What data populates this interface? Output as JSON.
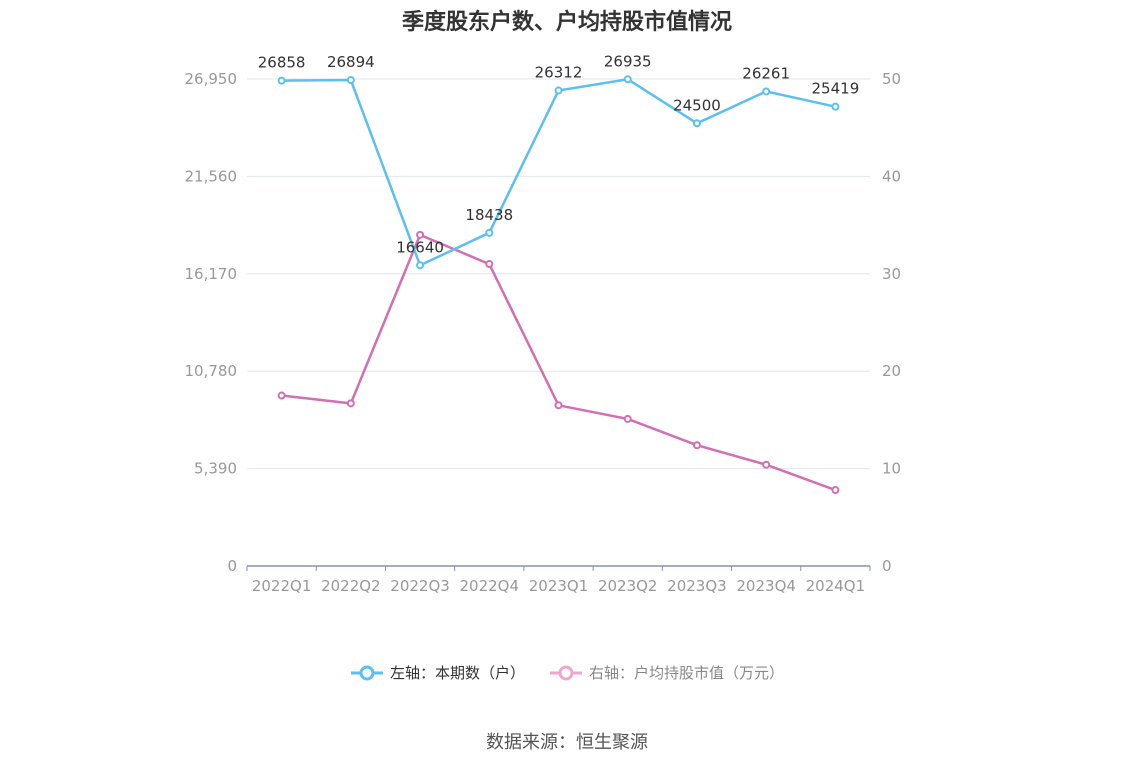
{
  "title": "季度股东户数、户均持股市值情况",
  "source": "数据来源：恒生聚源",
  "colors": {
    "left_series": "#5bc0ef",
    "right_series": "#d46eb3",
    "right_legend": "#f0a6cf",
    "grid": "#e3e6f0",
    "axis": "#8a8fb0",
    "tick_text": "#999999",
    "label_text": "#333333"
  },
  "chart_data": {
    "type": "line",
    "title": "季度股东户数、户均持股市值情况",
    "categories": [
      "2022Q1",
      "2022Q2",
      "2022Q3",
      "2022Q4",
      "2023Q1",
      "2023Q2",
      "2023Q3",
      "2023Q4",
      "2024Q1"
    ],
    "y_left": {
      "min": 0,
      "max": 26950,
      "ticks": [
        0,
        5390,
        10780,
        16170,
        21560,
        26950
      ],
      "tick_labels": [
        "0",
        "5,390",
        "10,780",
        "16,170",
        "21,560",
        "26,950"
      ]
    },
    "y_right": {
      "min": 0,
      "max": 50,
      "ticks": [
        0,
        10,
        20,
        30,
        40,
        50
      ],
      "tick_labels": [
        "0",
        "10",
        "20",
        "30",
        "40",
        "50"
      ]
    },
    "grid": true,
    "legend_position": "bottom",
    "series": [
      {
        "name": "左轴：本期数（户）",
        "axis": "left",
        "values": [
          26858,
          26894,
          16640,
          18438,
          26312,
          26935,
          24500,
          26261,
          25419
        ],
        "data_labels": [
          "26858",
          "26894",
          "16640",
          "18438",
          "26312",
          "26935",
          "24500",
          "26261",
          "25419"
        ]
      },
      {
        "name": "右轴：户均持股市值（万元）",
        "axis": "right",
        "values": [
          17.5,
          16.7,
          34.0,
          31.0,
          16.5,
          15.1,
          12.4,
          10.4,
          7.8
        ]
      }
    ]
  }
}
